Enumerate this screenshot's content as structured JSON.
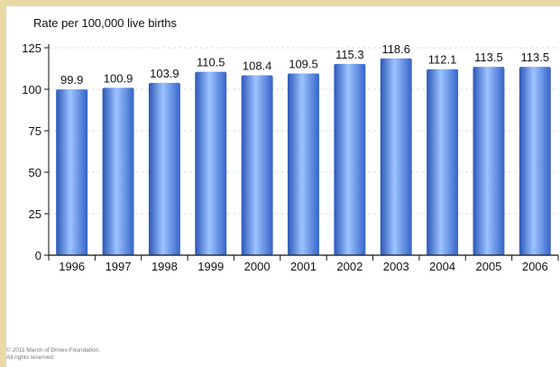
{
  "chart_data": {
    "type": "bar",
    "title": "",
    "xlabel": "",
    "ylabel": "Rate per 100,000 live births",
    "categories": [
      "1996",
      "1997",
      "1998",
      "1999",
      "2000",
      "2001",
      "2002",
      "2003",
      "2004",
      "2005",
      "2006"
    ],
    "values": [
      99.9,
      100.9,
      103.9,
      110.5,
      108.4,
      109.5,
      115.3,
      118.6,
      112.1,
      113.5,
      113.5
    ],
    "value_labels": [
      "99.9",
      "100.9",
      "103.9",
      "110.5",
      "108.4",
      "109.5",
      "115.3",
      "118.6",
      "112.1",
      "113.5",
      "113.5"
    ],
    "ylim": [
      0,
      125
    ],
    "yticks": [
      "0",
      "25",
      "50",
      "75",
      "100",
      "125"
    ],
    "grid": true,
    "legend": "none",
    "colors": {
      "bar_light": "#9dc3ff",
      "bar_mid": "#4f86e8",
      "bar_dark": "#2b57b8",
      "grid": "#dddddd",
      "axis": "#111111"
    }
  },
  "footer": {
    "copyright": "© 2011 March of Dimes Foundation.",
    "rights": "All rights reserved."
  },
  "colors": {
    "frame_background": "#e9d9a4"
  }
}
